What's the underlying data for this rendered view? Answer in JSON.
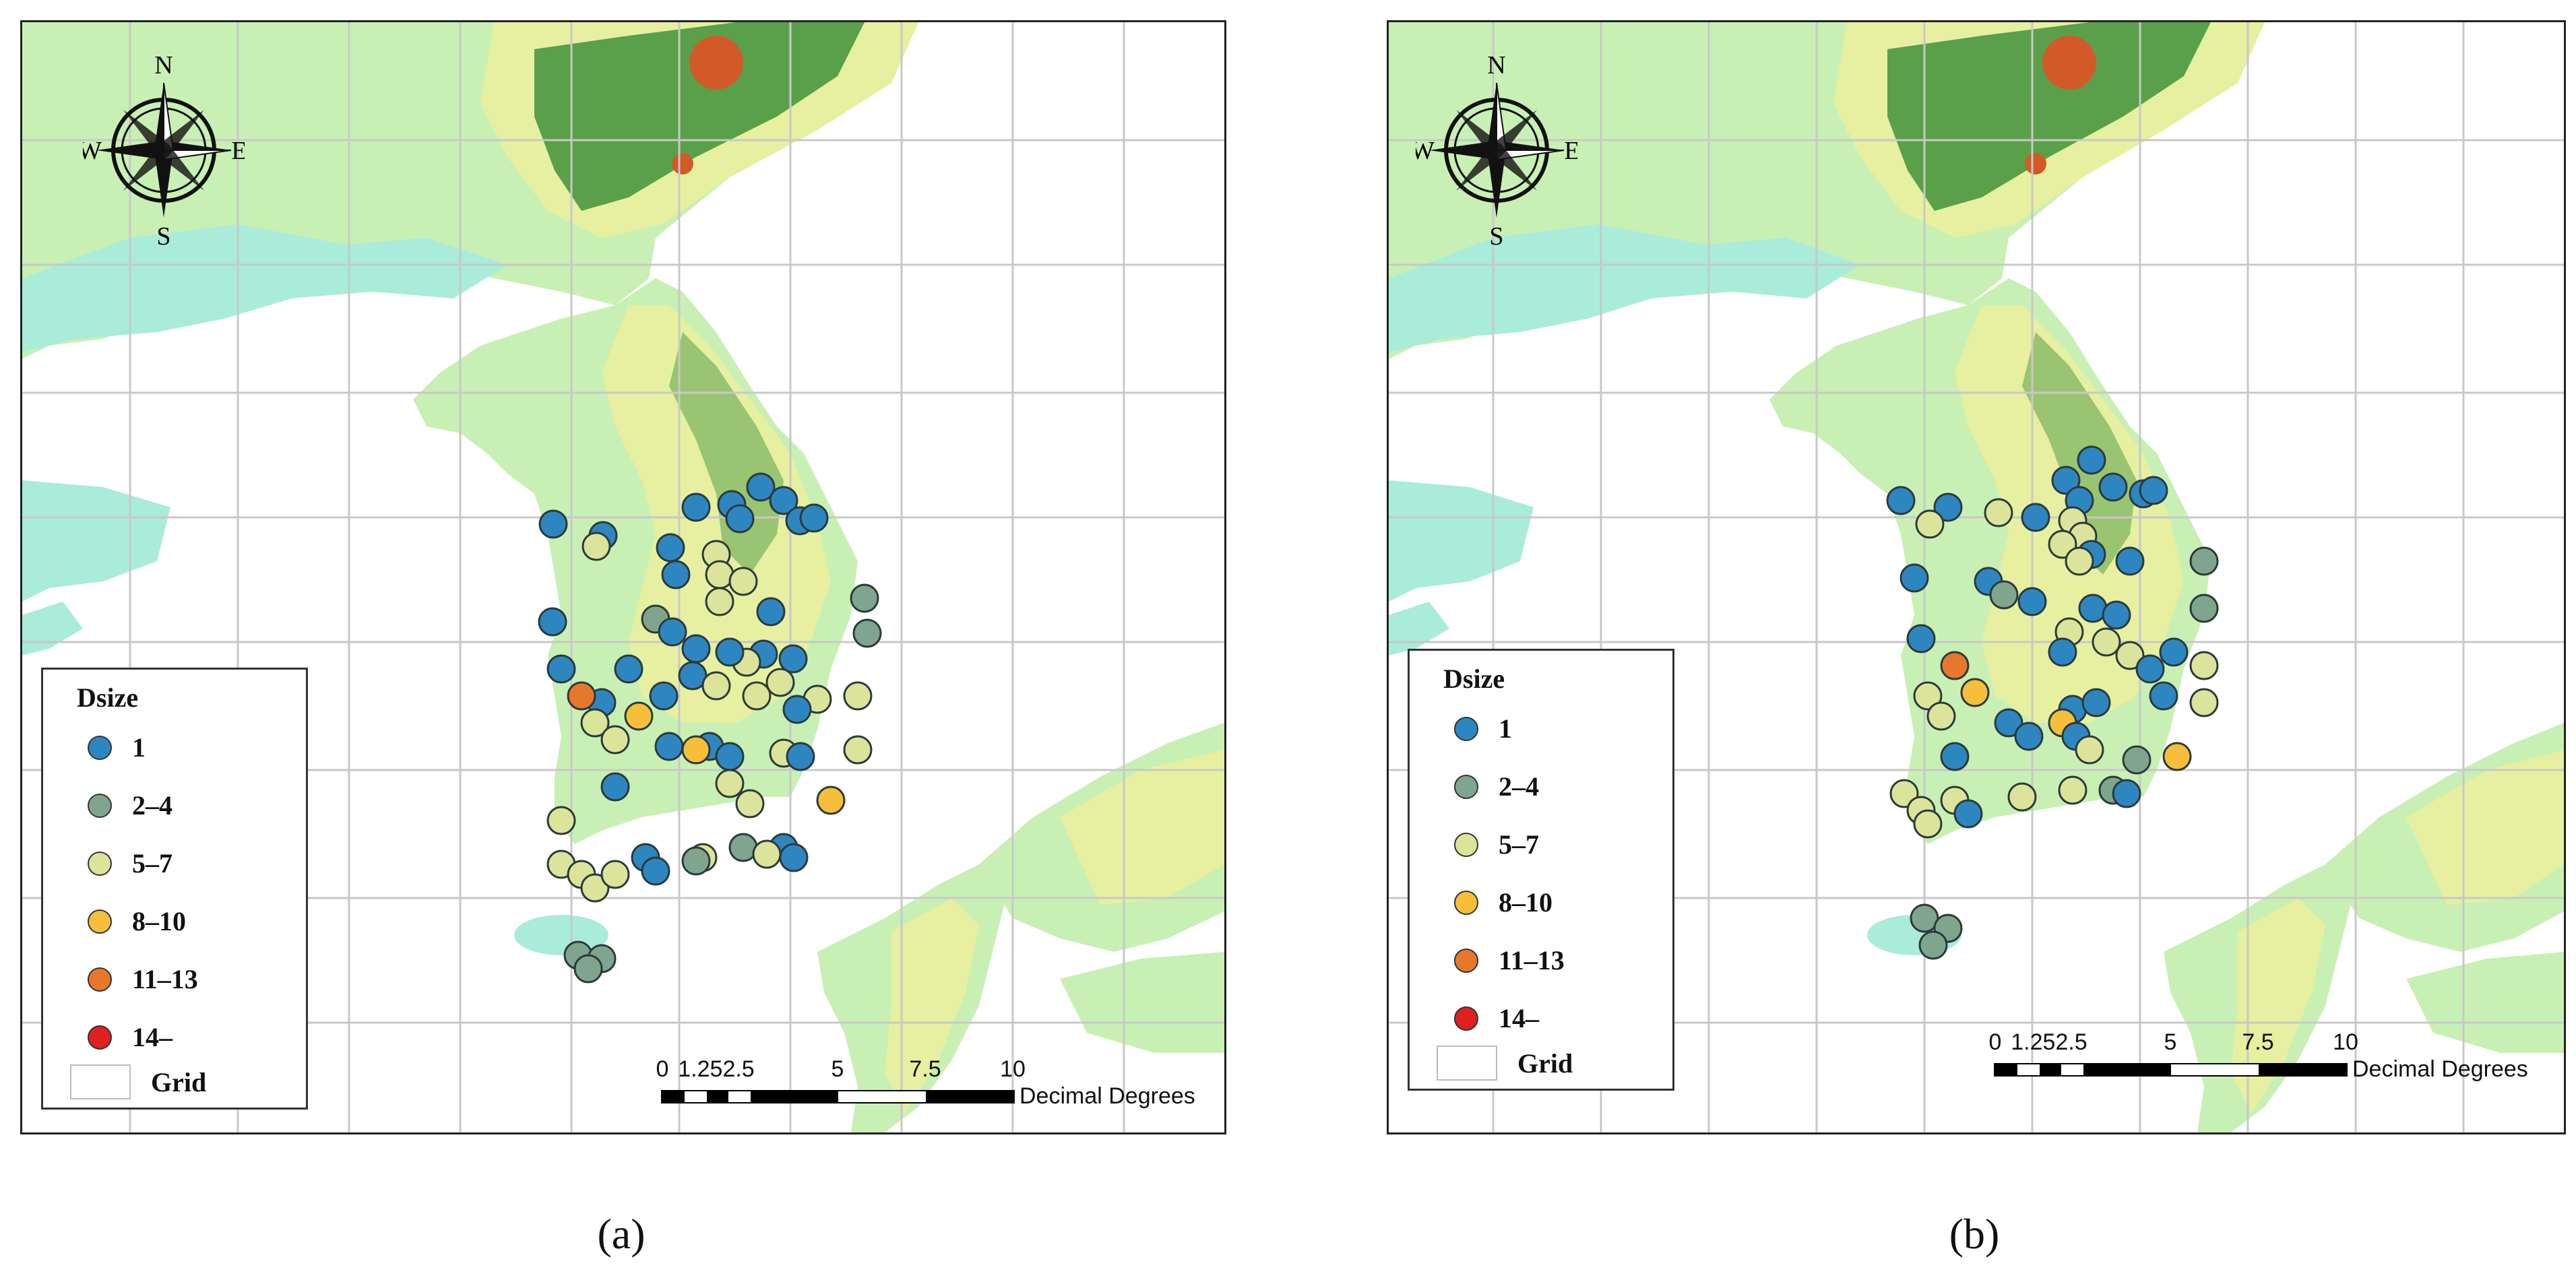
{
  "panels": [
    {
      "id": "a",
      "caption": "(a)",
      "legend": {
        "title": "Dsize",
        "classes": [
          {
            "label": "1",
            "color": "#2e86c1"
          },
          {
            "label": "2–4",
            "color": "#7fa58e"
          },
          {
            "label": "5–7",
            "color": "#dbe49a"
          },
          {
            "label": "8–10",
            "color": "#f5bf3c"
          },
          {
            "label": "11–13",
            "color": "#e8772e"
          },
          {
            "label": "14–",
            "color": "#e02020"
          }
        ],
        "grid_label": "Grid"
      },
      "scalebar": {
        "ticks": [
          "0",
          "1.252.5",
          "5",
          "7.5",
          "10"
        ],
        "unit": "Decimal Degrees"
      },
      "compass": {
        "n": "N",
        "s": "S",
        "e": "E",
        "w": "W"
      }
    },
    {
      "id": "b",
      "caption": "(b)",
      "legend": {
        "title": "Dsize",
        "classes": [
          {
            "label": "1",
            "color": "#2e86c1"
          },
          {
            "label": "2–4",
            "color": "#7fa58e"
          },
          {
            "label": "5–7",
            "color": "#dbe49a"
          },
          {
            "label": "8–10",
            "color": "#f5bf3c"
          },
          {
            "label": "11–13",
            "color": "#e8772e"
          },
          {
            "label": "14–",
            "color": "#e02020"
          }
        ],
        "grid_label": "Grid"
      },
      "scalebar": {
        "ticks": [
          "0",
          "1.252.5",
          "5",
          "7.5",
          "10"
        ],
        "unit": "Decimal Degrees"
      },
      "compass": {
        "n": "N",
        "s": "S",
        "e": "E",
        "w": "W"
      }
    }
  ],
  "colors": {
    "sea": "#ffffff",
    "lowland": "#a9ecd9",
    "plain": "#c8f0b4",
    "hill": "#e6f0a0",
    "mountain": "#5aa04a",
    "peak": "#d25a28",
    "grid": "#c8c8c8"
  }
}
